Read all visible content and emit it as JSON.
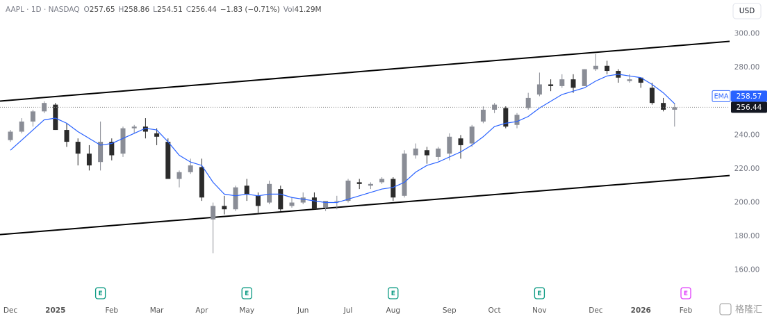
{
  "chart_data": {
    "type": "candlestick",
    "header": {
      "symbol": "AAPL · 1D · NASDAQ",
      "o_label": "O",
      "open": "257.65",
      "h_label": "H",
      "high": "258.86",
      "l_label": "L",
      "low": "254.51",
      "c_label": "C",
      "close": "256.44",
      "change": "−1.83 (−0.71%)",
      "vol_label": "Vol",
      "volume": "41.29M"
    },
    "currency": "USD",
    "watermark": "格隆汇",
    "categories": [
      "Dec",
      null,
      null,
      null,
      "2025",
      null,
      null,
      null,
      null,
      "Feb",
      null,
      null,
      null,
      "Mar",
      null,
      null,
      null,
      "Apr",
      null,
      null,
      null,
      "May",
      null,
      null,
      null,
      null,
      "Jun",
      null,
      null,
      null,
      "Jul",
      null,
      null,
      null,
      "Aug",
      null,
      null,
      null,
      null,
      "Sep",
      null,
      null,
      null,
      "Oct",
      null,
      null,
      null,
      "Nov",
      null,
      null,
      null,
      null,
      "Dec",
      null,
      null,
      null,
      "2026",
      null,
      null,
      null,
      "Feb"
    ],
    "open": [
      237,
      242,
      248,
      254,
      258,
      243,
      236,
      229,
      224,
      236,
      229,
      244,
      245,
      241,
      236,
      214,
      218,
      221,
      190,
      198,
      196,
      210,
      204,
      200,
      208,
      198,
      200,
      203,
      197,
      201,
      201,
      212,
      210,
      212,
      214,
      204,
      228,
      231,
      227,
      229,
      238,
      235,
      248,
      255,
      256,
      246,
      256,
      264,
      270,
      269,
      273,
      269,
      279,
      281,
      278,
      272,
      274,
      268,
      259,
      255,
      null
    ],
    "high": [
      243,
      250,
      255,
      260,
      259,
      247,
      238,
      234,
      248,
      238,
      245,
      246,
      250,
      244,
      238,
      219,
      226,
      226,
      200,
      204,
      210,
      214,
      206,
      213,
      210,
      203,
      206,
      206,
      200,
      204,
      214,
      214,
      212,
      215,
      215,
      231,
      235,
      233,
      233,
      241,
      240,
      246,
      257,
      259,
      257,
      253,
      265,
      277,
      273,
      276,
      276,
      279,
      288,
      284,
      279,
      276,
      274,
      271,
      262,
      259,
      null
    ],
    "low": [
      236,
      241,
      245,
      253,
      243,
      233,
      222,
      219,
      219,
      225,
      227,
      241,
      238,
      234,
      214,
      209,
      217,
      201,
      170,
      193,
      195,
      201,
      194,
      199,
      195,
      197,
      199,
      196,
      195,
      196,
      200,
      208,
      208,
      211,
      201,
      203,
      226,
      223,
      225,
      225,
      226,
      233,
      247,
      253,
      244,
      244,
      255,
      263,
      266,
      268,
      265,
      269,
      278,
      276,
      271,
      271,
      268,
      258,
      254,
      245,
      null
    ],
    "close": [
      242,
      248,
      254,
      259,
      243,
      236,
      229,
      222,
      236,
      228,
      244,
      245,
      242,
      239,
      214,
      218,
      222,
      203,
      198,
      196,
      209,
      205,
      198,
      211,
      196,
      200,
      203,
      196,
      201,
      201,
      213,
      211,
      211,
      214,
      203,
      229,
      232,
      228,
      232,
      239,
      234,
      245,
      255,
      258,
      245,
      252,
      262,
      270,
      269,
      273,
      268,
      279,
      281,
      278,
      274,
      273,
      271,
      259,
      255,
      256.44,
      null
    ],
    "up_color": "#8a8d96",
    "down_color": "#2b2b2b",
    "series": [
      {
        "name": "EMA",
        "color": "#2962ff",
        "values": [
          231,
          237,
          243,
          249,
          250,
          247,
          242,
          238,
          234,
          235,
          238,
          241,
          244,
          243,
          236,
          228,
          224,
          222,
          212,
          205,
          204,
          205,
          204,
          205,
          205,
          203,
          202,
          201,
          200,
          200,
          202,
          204,
          206,
          208,
          209,
          212,
          218,
          222,
          224,
          227,
          230,
          234,
          239,
          245,
          247,
          248,
          251,
          256,
          260,
          264,
          266,
          268,
          272,
          275,
          276,
          275,
          274,
          270,
          265,
          258.57,
          null
        ]
      }
    ],
    "trend_lines": [
      {
        "color": "#000000",
        "values": [
          260.1,
          295.5
        ]
      },
      {
        "color": "#000000",
        "values": [
          181,
          216
        ]
      }
    ],
    "events": [
      null,
      null,
      null,
      null,
      null,
      null,
      null,
      null,
      {
        "label": "E",
        "color": "#089981"
      },
      null,
      null,
      null,
      null,
      null,
      null,
      null,
      null,
      null,
      null,
      null,
      null,
      {
        "label": "E",
        "color": "#089981"
      },
      null,
      null,
      null,
      null,
      null,
      null,
      null,
      null,
      null,
      null,
      null,
      null,
      {
        "label": "E",
        "color": "#089981"
      },
      null,
      null,
      null,
      null,
      null,
      null,
      null,
      null,
      null,
      null,
      null,
      null,
      {
        "label": "E",
        "color": "#089981"
      },
      null,
      null,
      null,
      null,
      null,
      null,
      null,
      null,
      null,
      null,
      null,
      null,
      {
        "label": "E",
        "color": "#e040fb"
      }
    ],
    "ylim": [
      143,
      320
    ],
    "yticks": [
      {
        "value": 160,
        "label": "160.00"
      },
      {
        "value": 180,
        "label": "180.00"
      },
      {
        "value": 200,
        "label": "200.00"
      },
      {
        "value": 220,
        "label": "220.00"
      },
      {
        "value": 240,
        "label": "240.00"
      },
      {
        "value": 260,
        "label": "260.00"
      },
      {
        "value": 280,
        "label": "280.00"
      },
      {
        "value": 300,
        "label": "300.00"
      }
    ]
  }
}
